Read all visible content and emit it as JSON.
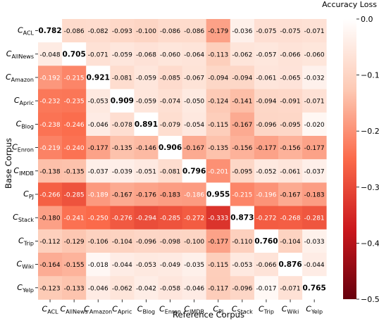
{
  "chart_data": {
    "type": "heatmap",
    "xlabel": "Reference Corpus",
    "ylabel": "Base Corpus",
    "colorbar_title": "Accuracy Loss",
    "colorbar_range": [
      -0.5,
      0.0
    ],
    "colorbar_ticks": [
      {
        "value": 0.0,
        "label": "0.0"
      },
      {
        "value": -0.1,
        "label": "−0.1"
      },
      {
        "value": -0.2,
        "label": "−0.2"
      },
      {
        "value": -0.3,
        "label": "−0.3"
      },
      {
        "value": -0.4,
        "label": "−0.4"
      },
      {
        "value": -0.5,
        "label": "−0.5"
      }
    ],
    "colormap": [
      "#ffffff",
      "#fdcab5",
      "#fb6a4a",
      "#cb181d",
      "#67000d"
    ],
    "rows": [
      {
        "base": "C",
        "sub": "ACL"
      },
      {
        "base": "C",
        "sub": "AllNews"
      },
      {
        "base": "C",
        "sub": "Amazon"
      },
      {
        "base": "C",
        "sub": "Apric"
      },
      {
        "base": "C",
        "sub": "Blog"
      },
      {
        "base": "C",
        "sub": "Enron"
      },
      {
        "base": "C",
        "sub": "IMDB"
      },
      {
        "base": "C",
        "sub": "PJ"
      },
      {
        "base": "C",
        "sub": "Stack"
      },
      {
        "base": "C",
        "sub": "Trip"
      },
      {
        "base": "C",
        "sub": "Wiki"
      },
      {
        "base": "C",
        "sub": "Yelp"
      }
    ],
    "cols": [
      {
        "base": "C",
        "sub": "ACL"
      },
      {
        "base": "C",
        "sub": "AllNews"
      },
      {
        "base": "C",
        "sub": "Amazon"
      },
      {
        "base": "C",
        "sub": "Apric"
      },
      {
        "base": "C",
        "sub": "Blog"
      },
      {
        "base": "C",
        "sub": "Enron"
      },
      {
        "base": "C",
        "sub": "IMDB"
      },
      {
        "base": "C",
        "sub": "PJ"
      },
      {
        "base": "C",
        "sub": "Stack"
      },
      {
        "base": "C",
        "sub": "Trip"
      },
      {
        "base": "C",
        "sub": "Wiki"
      },
      {
        "base": "C",
        "sub": "Yelp"
      }
    ],
    "values": [
      [
        0.782,
        -0.086,
        -0.082,
        -0.093,
        -0.1,
        -0.086,
        -0.086,
        -0.179,
        -0.036,
        -0.075,
        -0.075,
        -0.071
      ],
      [
        -0.048,
        0.705,
        -0.071,
        -0.059,
        -0.068,
        -0.06,
        -0.064,
        -0.113,
        -0.062,
        -0.057,
        -0.066,
        -0.06
      ],
      [
        -0.192,
        -0.215,
        0.921,
        -0.081,
        -0.059,
        -0.085,
        -0.067,
        -0.094,
        -0.094,
        -0.061,
        -0.065,
        -0.032
      ],
      [
        -0.232,
        -0.235,
        -0.053,
        0.909,
        -0.059,
        -0.074,
        -0.05,
        -0.124,
        -0.141,
        -0.094,
        -0.091,
        -0.071
      ],
      [
        -0.238,
        -0.246,
        -0.046,
        -0.078,
        0.891,
        -0.079,
        -0.054,
        -0.115,
        -0.167,
        -0.096,
        -0.095,
        -0.02
      ],
      [
        -0.219,
        -0.24,
        -0.177,
        -0.135,
        -0.146,
        0.906,
        -0.167,
        -0.135,
        -0.156,
        -0.177,
        -0.156,
        -0.177
      ],
      [
        -0.138,
        -0.135,
        -0.037,
        -0.039,
        -0.051,
        -0.081,
        0.796,
        -0.201,
        -0.095,
        -0.052,
        -0.061,
        -0.037
      ],
      [
        -0.266,
        -0.285,
        -0.189,
        -0.167,
        -0.176,
        -0.183,
        -0.186,
        0.955,
        -0.215,
        -0.196,
        -0.167,
        -0.183
      ],
      [
        -0.18,
        -0.241,
        -0.25,
        -0.276,
        -0.294,
        -0.285,
        -0.272,
        -0.333,
        0.873,
        -0.272,
        -0.268,
        -0.281
      ],
      [
        -0.112,
        -0.129,
        -0.106,
        -0.104,
        -0.096,
        -0.098,
        -0.1,
        -0.177,
        -0.11,
        0.76,
        -0.104,
        -0.033
      ],
      [
        -0.164,
        -0.155,
        -0.018,
        -0.044,
        -0.053,
        -0.049,
        -0.035,
        -0.115,
        -0.053,
        -0.066,
        0.876,
        -0.044
      ],
      [
        -0.123,
        -0.133,
        -0.046,
        -0.062,
        -0.042,
        -0.058,
        -0.046,
        -0.117,
        -0.096,
        -0.017,
        -0.071,
        0.765
      ]
    ],
    "diagonal_display": "white cell, bold value"
  }
}
